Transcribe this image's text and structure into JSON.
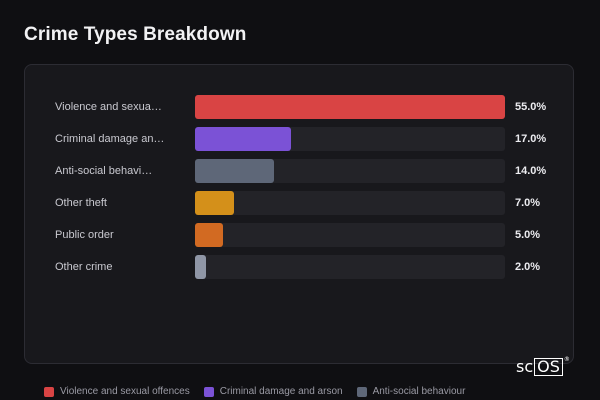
{
  "page": {
    "title": "Crime Types Breakdown"
  },
  "chart_data": {
    "type": "bar",
    "orientation": "horizontal",
    "categories": [
      "Violence and sexua…",
      "Criminal damage an…",
      "Anti-social behavi…",
      "Other theft",
      "Public order",
      "Other crime"
    ],
    "values": [
      55.0,
      17.0,
      14.0,
      7.0,
      5.0,
      2.0
    ],
    "value_labels": [
      "55.0%",
      "17.0%",
      "14.0%",
      "7.0%",
      "5.0%",
      "2.0%"
    ],
    "colors": [
      "#d94444",
      "#7b52d6",
      "#5e6778",
      "#d4901a",
      "#d26a22",
      "#8f96a6"
    ],
    "xlim": [
      0,
      55
    ],
    "legend_position": "bottom",
    "legend": [
      {
        "label": "Violence and sexual offences",
        "color": "#d94444"
      },
      {
        "label": "Criminal damage and arson",
        "color": "#7b52d6"
      },
      {
        "label": "Anti-social behaviour",
        "color": "#5e6778"
      }
    ]
  },
  "logo": {
    "prefix": "sc",
    "boxed": "OS",
    "mark": "®"
  }
}
